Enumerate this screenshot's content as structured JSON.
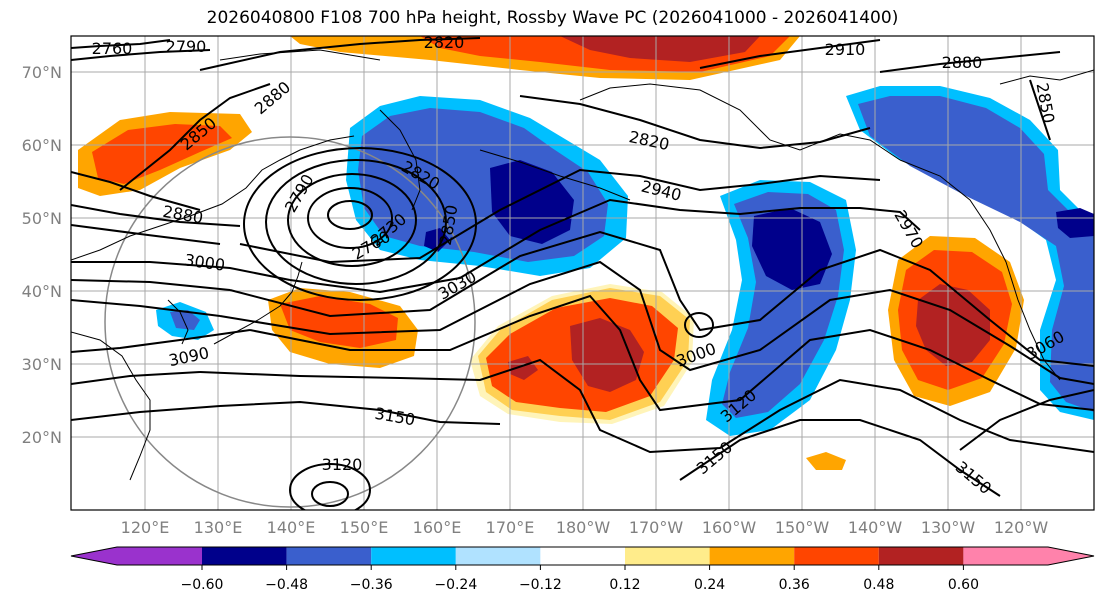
{
  "title": "2026040800 F108 700 hPa height, Rossby Wave PC (2026041000 - 2026041400)",
  "lat_labels": [
    "70°N",
    "60°N",
    "50°N",
    "40°N",
    "30°N",
    "20°N"
  ],
  "lon_labels": [
    "120°E",
    "130°E",
    "140°E",
    "150°E",
    "160°E",
    "170°E",
    "180°W",
    "170°W",
    "160°W",
    "150°W",
    "140°W",
    "130°W",
    "120°W"
  ],
  "colorbar": {
    "ticks": [
      "−0.60",
      "−0.48",
      "−0.36",
      "−0.24",
      "−0.12",
      "0.12",
      "0.24",
      "0.36",
      "0.48",
      "0.60"
    ],
    "colors": [
      "#9a32cd",
      "#00008b",
      "#3a5fcd",
      "#00bfff",
      "#b0e2ff",
      "#ffffff",
      "#ffec8b",
      "#ffa500",
      "#ff4500",
      "#b22222",
      "#ff82ab"
    ]
  },
  "contour_labels": [
    "2760",
    "2790",
    "2820",
    "2910",
    "2880",
    "2850",
    "2850",
    "2880",
    "2820",
    "2940",
    "2790",
    "2820",
    "2850",
    "2760",
    "2730",
    "2880",
    "3000",
    "3030",
    "2970",
    "3090",
    "3000",
    "3060",
    "3120",
    "3150",
    "3150",
    "3120",
    "3150"
  ],
  "colors": {
    "positive_strong": "#b22222",
    "positive": "#ff4500",
    "positive_weak": "#ffa500",
    "negative_strong": "#00008b",
    "negative": "#3a5fcd",
    "negative_weak": "#00bfff"
  }
}
